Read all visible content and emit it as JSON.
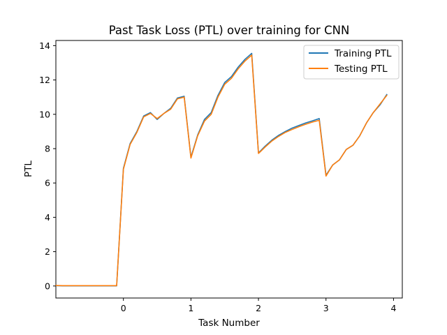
{
  "chart_data": {
    "type": "line",
    "title": "Past Task Loss (PTL) over training for CNN",
    "xlabel": "Task Number",
    "ylabel": "PTL",
    "xlim": [
      -1.0,
      4.13
    ],
    "ylim": [
      -0.7,
      14.3
    ],
    "xticks": [
      0,
      1,
      2,
      3,
      4
    ],
    "yticks": [
      0,
      2,
      4,
      6,
      8,
      10,
      12,
      14
    ],
    "grid": false,
    "legend": "top-right",
    "series": [
      {
        "name": "Training PTL",
        "color": "#1f77b4",
        "x": [
          -1.0,
          -0.9,
          -0.8,
          -0.7,
          -0.6,
          -0.5,
          -0.4,
          -0.3,
          -0.2,
          -0.1,
          0.0,
          0.1,
          0.2,
          0.3,
          0.4,
          0.5,
          0.6,
          0.7,
          0.8,
          0.9,
          1.0,
          1.1,
          1.2,
          1.3,
          1.4,
          1.5,
          1.6,
          1.7,
          1.8,
          1.9,
          2.0,
          2.1,
          2.2,
          2.3,
          2.4,
          2.5,
          2.6,
          2.7,
          2.8,
          2.9,
          3.0,
          3.1,
          3.2,
          3.3,
          3.4,
          3.5,
          3.6,
          3.7,
          3.8,
          3.9
        ],
        "y": [
          0.02,
          0.01,
          0.01,
          0.01,
          0.01,
          0.01,
          0.01,
          0.01,
          0.01,
          0.01,
          6.85,
          8.3,
          9.0,
          9.9,
          10.1,
          9.7,
          10.05,
          10.35,
          10.95,
          11.05,
          7.5,
          8.8,
          9.7,
          10.1,
          11.1,
          11.85,
          12.2,
          12.75,
          13.2,
          13.55,
          7.75,
          8.15,
          8.5,
          8.78,
          9.0,
          9.2,
          9.35,
          9.5,
          9.62,
          9.75,
          6.45,
          7.05,
          7.35,
          7.95,
          8.2,
          8.75,
          9.5,
          10.1,
          10.55,
          11.15
        ]
      },
      {
        "name": "Testing PTL",
        "color": "#ff7f0e",
        "x": [
          -1.0,
          -0.9,
          -0.8,
          -0.7,
          -0.6,
          -0.5,
          -0.4,
          -0.3,
          -0.2,
          -0.1,
          0.0,
          0.1,
          0.2,
          0.3,
          0.4,
          0.5,
          0.6,
          0.7,
          0.8,
          0.9,
          1.0,
          1.1,
          1.2,
          1.3,
          1.4,
          1.5,
          1.6,
          1.7,
          1.8,
          1.9,
          2.0,
          2.1,
          2.2,
          2.3,
          2.4,
          2.5,
          2.6,
          2.7,
          2.8,
          2.9,
          3.0,
          3.1,
          3.2,
          3.3,
          3.4,
          3.5,
          3.6,
          3.7,
          3.8,
          3.9
        ],
        "y": [
          0.03,
          0.02,
          0.02,
          0.02,
          0.02,
          0.02,
          0.02,
          0.02,
          0.02,
          0.02,
          6.8,
          8.25,
          8.95,
          9.85,
          10.05,
          9.75,
          10.05,
          10.3,
          10.9,
          11.0,
          7.45,
          8.75,
          9.6,
          10.0,
          11.0,
          11.75,
          12.1,
          12.65,
          13.1,
          13.45,
          7.72,
          8.1,
          8.45,
          8.72,
          8.95,
          9.12,
          9.28,
          9.42,
          9.55,
          9.65,
          6.4,
          7.05,
          7.35,
          7.95,
          8.2,
          8.75,
          9.5,
          10.1,
          10.6,
          11.1
        ]
      }
    ]
  }
}
